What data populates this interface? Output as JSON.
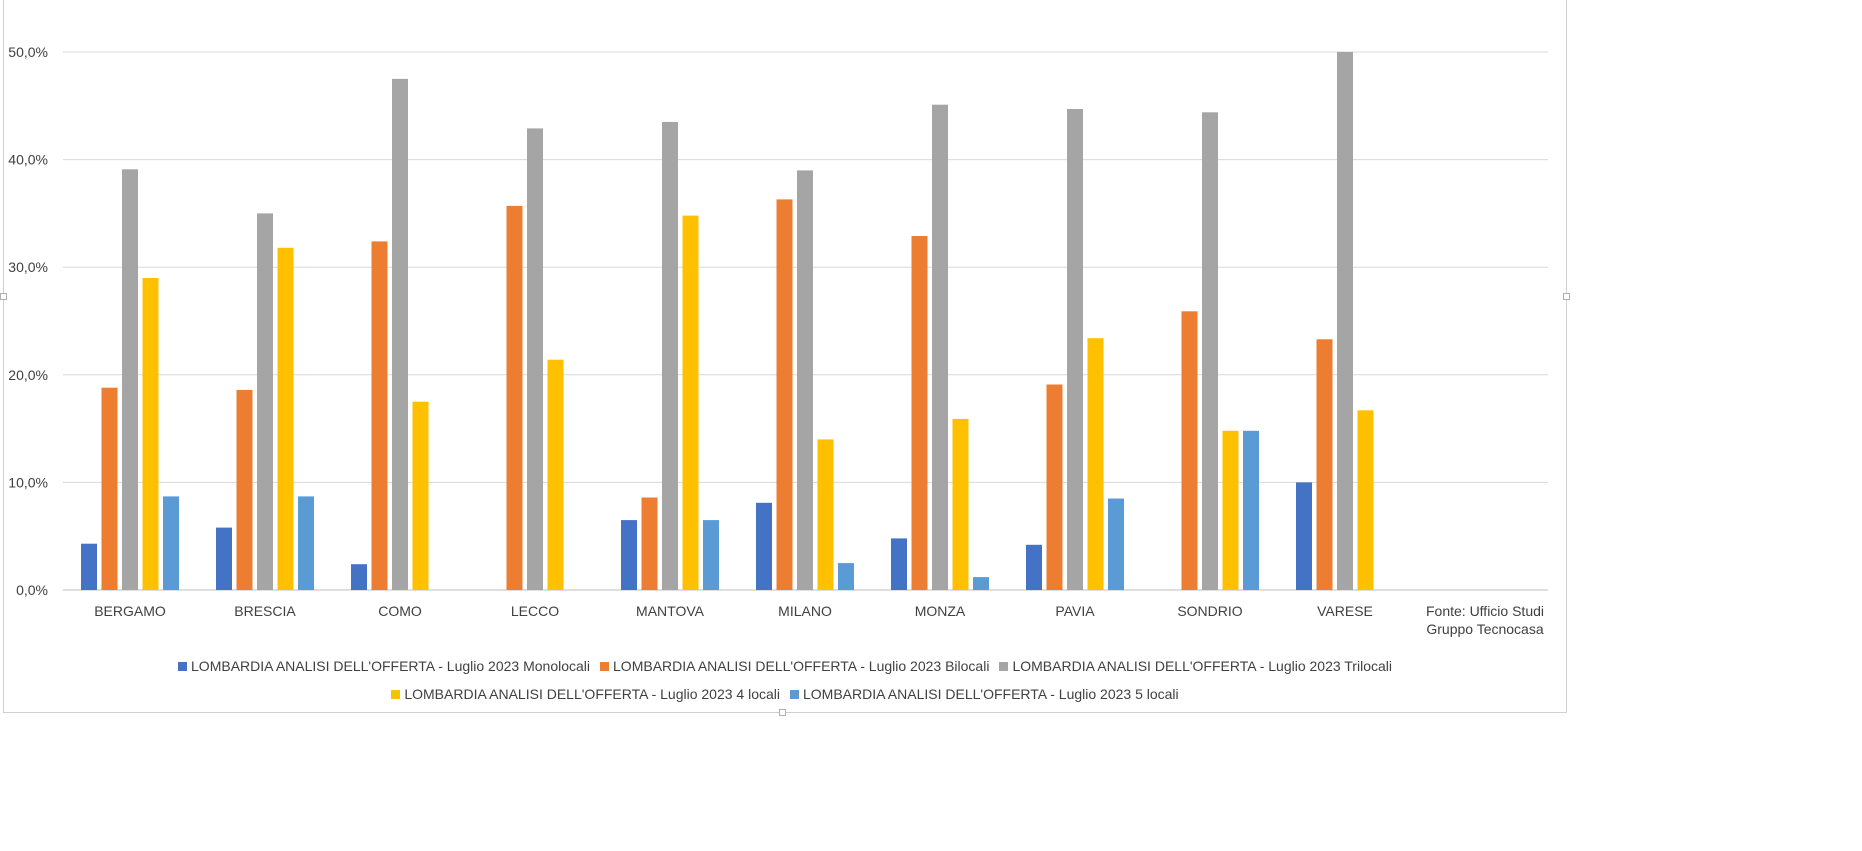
{
  "chart_data": {
    "type": "bar",
    "title": "",
    "xlabel": "",
    "ylabel": "",
    "ylim": [
      0,
      50
    ],
    "y_ticks": [
      "0,0%",
      "10,0%",
      "20,0%",
      "30,0%",
      "40,0%",
      "50,0%"
    ],
    "grid": "horizontal",
    "legend_position": "bottom",
    "categories": [
      "BERGAMO",
      "BRESCIA",
      "COMO",
      "LECCO",
      "MANTOVA",
      "MILANO",
      "MONZA",
      "PAVIA",
      "SONDRIO",
      "VARESE"
    ],
    "series": [
      {
        "name": "LOMBARDIA ANALISI DELL'OFFERTA - Luglio 2023 Monolocali",
        "color": "#4472C4",
        "values": [
          4.3,
          5.8,
          2.4,
          0,
          6.5,
          8.1,
          4.8,
          4.2,
          0,
          10.0
        ]
      },
      {
        "name": "LOMBARDIA ANALISI DELL'OFFERTA - Luglio 2023 Bilocali",
        "color": "#ED7D31",
        "values": [
          18.8,
          18.6,
          32.4,
          35.7,
          8.6,
          36.3,
          32.9,
          19.1,
          25.9,
          23.3
        ]
      },
      {
        "name": "LOMBARDIA ANALISI DELL'OFFERTA - Luglio 2023 Trilocali",
        "color": "#A5A5A5",
        "values": [
          39.1,
          35.0,
          47.5,
          42.9,
          43.5,
          39.0,
          45.1,
          44.7,
          44.4,
          50.0
        ]
      },
      {
        "name": "LOMBARDIA ANALISI DELL'OFFERTA - Luglio 2023 4 locali",
        "color": "#FFC000",
        "values": [
          29.0,
          31.8,
          17.5,
          21.4,
          34.8,
          14.0,
          15.9,
          23.4,
          14.8,
          16.7
        ]
      },
      {
        "name": "LOMBARDIA ANALISI DELL'OFFERTA - Luglio 2023 5 locali",
        "color": "#5B9BD5",
        "values": [
          8.7,
          8.7,
          0,
          0,
          6.5,
          2.5,
          1.2,
          8.5,
          14.8,
          0
        ]
      }
    ]
  },
  "source_note": {
    "line1": "Fonte: Ufficio Studi",
    "line2": "Gruppo Tecnocasa"
  }
}
